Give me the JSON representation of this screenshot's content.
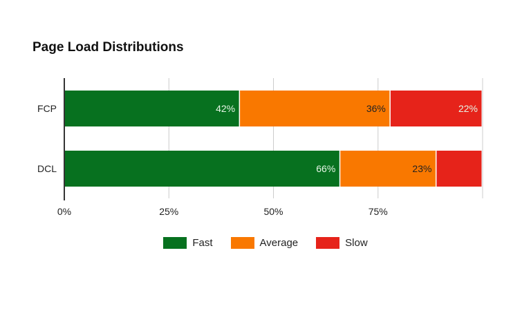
{
  "chart_data": {
    "type": "bar",
    "orientation": "horizontal",
    "stacked": true,
    "title": "Page Load Distributions",
    "categories": [
      "FCP",
      "DCL"
    ],
    "series": [
      {
        "name": "Fast",
        "color": "#07711f",
        "values": [
          42,
          66
        ],
        "labels": [
          "42%",
          "66%"
        ]
      },
      {
        "name": "Average",
        "color": "#f97800",
        "values": [
          36,
          23
        ],
        "labels": [
          "36%",
          "23%"
        ]
      },
      {
        "name": "Slow",
        "color": "#e6231a",
        "values": [
          22,
          11
        ],
        "labels": [
          "22%",
          ""
        ]
      }
    ],
    "xlim": [
      0,
      100
    ],
    "xticks": [
      0,
      25,
      50,
      75
    ],
    "xtick_labels": [
      "0%",
      "25%",
      "50%",
      "75%"
    ],
    "grid": true,
    "legend_position": "bottom"
  }
}
